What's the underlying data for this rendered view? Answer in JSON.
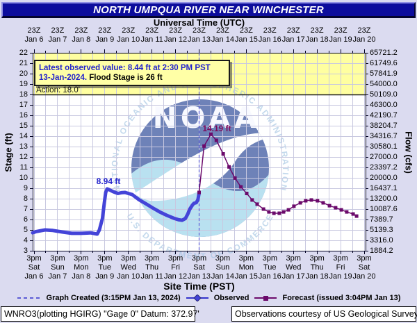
{
  "title": "NORTH UMPQUA RIVER NEAR WINCHESTER",
  "top_axis": {
    "label": "Universal Time (UTC)",
    "time_label": "23Z",
    "dates": [
      "Jan 6",
      "Jan 7",
      "Jan 8",
      "Jan 9",
      "Jan 10",
      "Jan 11",
      "Jan 12",
      "Jan 13",
      "Jan 14",
      "Jan 15",
      "Jan 16",
      "Jan 17",
      "Jan 18",
      "Jan 19",
      "Jan 20"
    ]
  },
  "bottom_axis": {
    "label": "Site Time (PST)",
    "time_label": "3pm",
    "days": [
      "Sat",
      "Sun",
      "Mon",
      "Tue",
      "Wed",
      "Thu",
      "Fri",
      "Sat",
      "Sun",
      "Mon",
      "Tue",
      "Wed",
      "Thu",
      "Fri",
      "Sat"
    ],
    "dates": [
      "Jan 6",
      "Jan 7",
      "Jan 8",
      "Jan 9",
      "Jan 10",
      "Jan 11",
      "Jan 12",
      "Jan 13",
      "Jan 14",
      "Jan 15",
      "Jan 16",
      "Jan 17",
      "Jan 18",
      "Jan 19",
      "Jan 20"
    ]
  },
  "left_axis": {
    "label": "Stage (ft)",
    "ticks": [
      "22",
      "21",
      "20",
      "19",
      "18",
      "17",
      "16",
      "15",
      "14",
      "13",
      "12",
      "11",
      "10",
      "9",
      "8",
      "7",
      "6",
      "5",
      "4",
      "3"
    ]
  },
  "right_axis": {
    "label": "Flow (cfs)",
    "ticks": [
      "65721.2",
      "61749.6",
      "57841.9",
      "54000.0",
      "50109.0",
      "46300.0",
      "42190.7",
      "38204.7",
      "34316.7",
      "30580.1",
      "27000.0",
      "23397.2",
      "20000.0",
      "16437.1",
      "13200.0",
      "10087.6",
      "7389.7",
      "5139.3",
      "3316.0",
      "1884.2"
    ]
  },
  "info_box": {
    "line1": "Latest observed value: 8.44 ft at 2:30 PM PST",
    "line2_blue": "13-Jan-2024.",
    "line2_black": " Flood Stage is 26 ft"
  },
  "action_label": "Action: 18.0'",
  "annotations": {
    "observed_peak": "8.94 ft",
    "forecast_peak": "14.19 ft"
  },
  "logo": {
    "name": "NOAA",
    "ring_top": "NATIONAL OCEANIC AND ATMOSPHERIC ADMINISTRATION",
    "ring_bottom": "U.S. DEPARTMENT OF COMMERCE"
  },
  "legend": {
    "created": "Graph Created (3:15PM Jan 13, 2024)",
    "observed": "Observed",
    "forecast": "Forecast (issued 3:04PM Jan 13)"
  },
  "footer": {
    "left": "WNRO3(plotting HGIRG) \"Gage 0\" Datum: 372.97'",
    "right": "Observations courtesy of US Geological Survey"
  },
  "colors": {
    "observed": "#4444d8",
    "forecast": "#6b0a6b",
    "created_line": "#5c5cd6",
    "warning_band": "#ffffa0",
    "grid": "#c8c8e0",
    "title_bar": "#0d0d9c",
    "annotation_blue": "#2222cc",
    "annotation_magenta": "#7a0a5e",
    "logo_dark": "#16368e",
    "logo_light": "#8fd0e8"
  },
  "chart_data": {
    "type": "line",
    "title": "NORTH UMPQUA RIVER NEAR WINCHESTER",
    "xlabel_top": "Universal Time (UTC)",
    "xlabel_bottom": "Site Time (PST)",
    "ylabel_left": "Stage (ft)",
    "ylabel_right": "Flow (cfs)",
    "x_unit": "days since Jan 6 3pm PST (ticks daily at 3pm / 23Z)",
    "x_range": [
      0,
      14
    ],
    "stage_range": [
      3,
      22
    ],
    "action_stage": 18.0,
    "flood_stage": 26,
    "latest_observed": {
      "stage": 8.44,
      "time": "2:30 PM PST 13-Jan-2024"
    },
    "graph_created_x": 7.0,
    "grid": true,
    "series": [
      {
        "name": "Observed",
        "style": "thick-line",
        "points": [
          [
            -0.06,
            4.73
          ],
          [
            0.1,
            4.85
          ],
          [
            0.47,
            5.0
          ],
          [
            0.8,
            4.95
          ],
          [
            1.2,
            4.8
          ],
          [
            1.6,
            4.67
          ],
          [
            2.0,
            4.67
          ],
          [
            2.4,
            4.72
          ],
          [
            2.68,
            4.6
          ],
          [
            2.77,
            5.0
          ],
          [
            2.9,
            6.1
          ],
          [
            2.98,
            7.6
          ],
          [
            3.04,
            8.6
          ],
          [
            3.1,
            8.94
          ],
          [
            3.2,
            8.85
          ],
          [
            3.35,
            8.67
          ],
          [
            3.56,
            8.5
          ],
          [
            3.7,
            8.57
          ],
          [
            3.86,
            8.6
          ],
          [
            4.0,
            8.5
          ],
          [
            4.16,
            8.4
          ],
          [
            4.45,
            7.9
          ],
          [
            4.75,
            7.5
          ],
          [
            5.04,
            7.1
          ],
          [
            5.33,
            6.73
          ],
          [
            5.63,
            6.4
          ],
          [
            5.92,
            6.13
          ],
          [
            6.13,
            5.97
          ],
          [
            6.28,
            5.93
          ],
          [
            6.42,
            6.1
          ],
          [
            6.52,
            6.53
          ],
          [
            6.6,
            6.97
          ],
          [
            6.72,
            7.4
          ],
          [
            6.78,
            7.55
          ],
          [
            6.88,
            7.62
          ],
          [
            6.95,
            7.9
          ],
          [
            6.99,
            8.44
          ]
        ]
      },
      {
        "name": "Forecast",
        "style": "line-square-markers",
        "points": [
          [
            7.0,
            8.6
          ],
          [
            7.21,
            13.05
          ],
          [
            7.5,
            14.19
          ],
          [
            7.73,
            13.6
          ],
          [
            8.02,
            12.3
          ],
          [
            8.27,
            11.05
          ],
          [
            8.52,
            9.97
          ],
          [
            8.77,
            9.13
          ],
          [
            9.02,
            8.5
          ],
          [
            9.25,
            7.87
          ],
          [
            9.46,
            7.47
          ],
          [
            9.73,
            7.0
          ],
          [
            9.96,
            6.73
          ],
          [
            10.17,
            6.6
          ],
          [
            10.4,
            6.6
          ],
          [
            10.58,
            6.73
          ],
          [
            10.79,
            6.93
          ],
          [
            11.02,
            7.27
          ],
          [
            11.29,
            7.6
          ],
          [
            11.52,
            7.8
          ],
          [
            11.76,
            7.87
          ],
          [
            12.02,
            7.8
          ],
          [
            12.26,
            7.6
          ],
          [
            12.53,
            7.33
          ],
          [
            12.79,
            7.13
          ],
          [
            13.03,
            6.93
          ],
          [
            13.26,
            6.73
          ],
          [
            13.53,
            6.53
          ],
          [
            13.68,
            6.33
          ]
        ]
      }
    ],
    "annotations": [
      {
        "text": "8.94 ft",
        "x": 3.1,
        "stage": 8.94,
        "series": "Observed"
      },
      {
        "text": "14.19 ft",
        "x": 7.5,
        "stage": 14.19,
        "series": "Forecast"
      }
    ]
  }
}
